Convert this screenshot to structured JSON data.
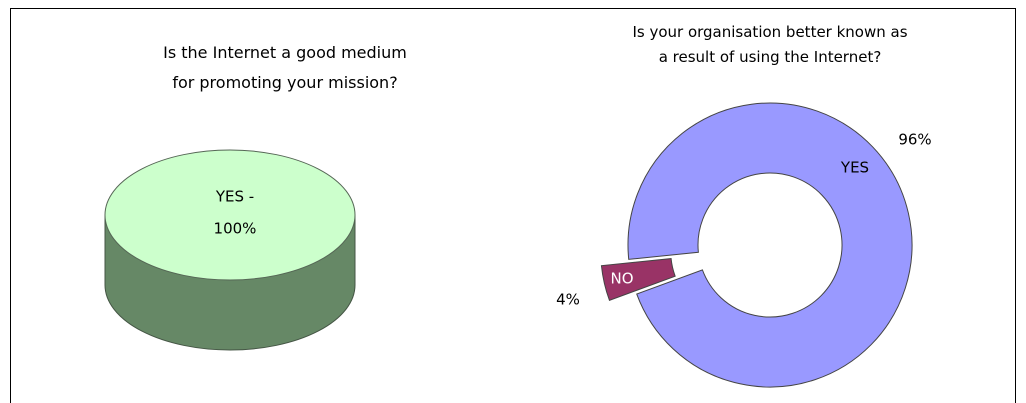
{
  "chart_data": [
    {
      "type": "pie3d",
      "title": "Is the Internet a good medium\nfor promoting your mission?",
      "categories": [
        "YES -"
      ],
      "values": [
        100
      ],
      "value_labels": [
        "100%"
      ],
      "colors": [
        "#ccffcc"
      ],
      "side_color": "#668866"
    },
    {
      "type": "donut",
      "title": "Is your organisation better known as\na result of using the Internet?",
      "categories": [
        "YES",
        "NO"
      ],
      "values": [
        96,
        4
      ],
      "value_labels": [
        "96%",
        "4%"
      ],
      "colors": [
        "#9999ff",
        "#993366"
      ]
    }
  ]
}
